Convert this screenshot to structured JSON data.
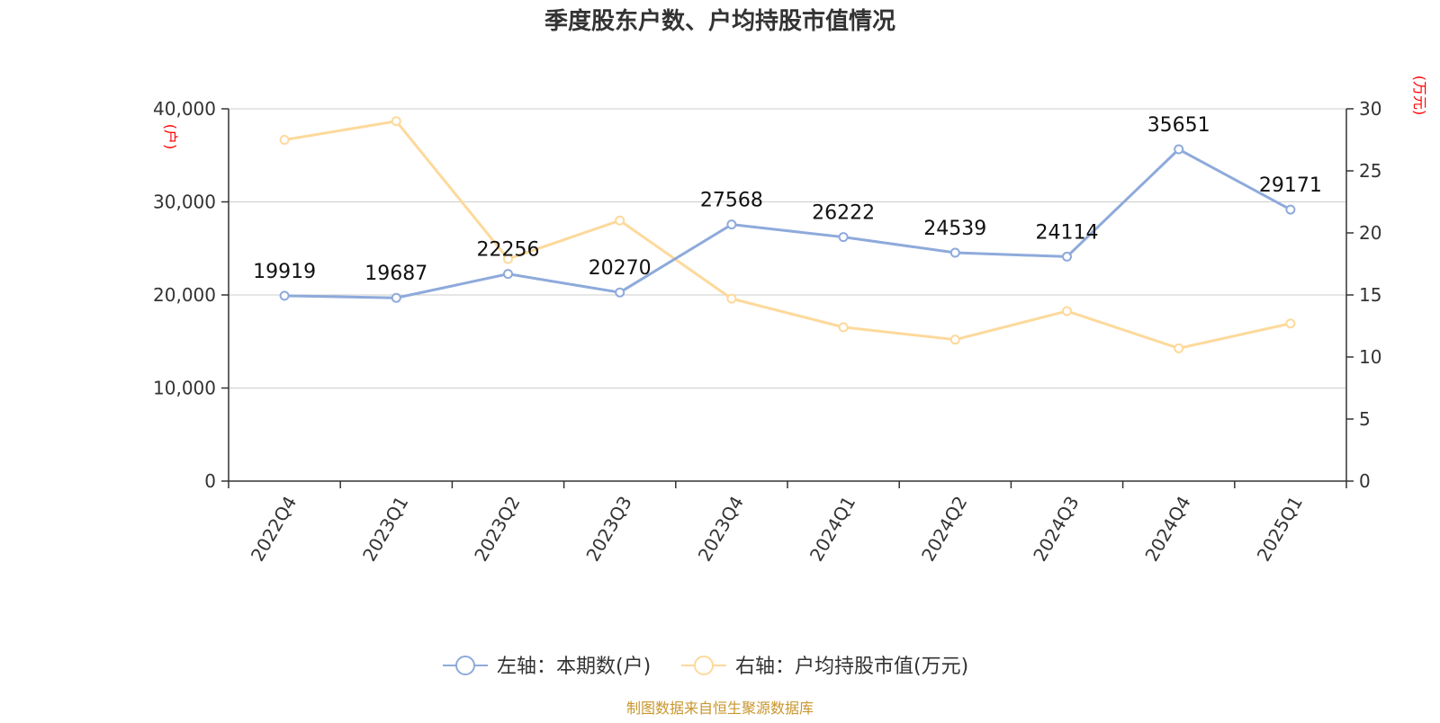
{
  "chart_data": {
    "type": "line",
    "title": "季度股东户数、户均持股市值情况",
    "categories": [
      "2022Q4",
      "2023Q1",
      "2023Q2",
      "2023Q3",
      "2023Q4",
      "2024Q1",
      "2024Q2",
      "2024Q3",
      "2024Q4",
      "2025Q1"
    ],
    "y_left": {
      "unit": "(户)",
      "range": [
        0,
        40000
      ],
      "ticks": [
        0,
        10000,
        20000,
        30000,
        40000
      ],
      "tick_labels": [
        "0",
        "10,000",
        "20,000",
        "30,000",
        "40,000"
      ]
    },
    "y_right": {
      "unit": "(万元)",
      "range": [
        0,
        30
      ],
      "ticks": [
        0,
        5,
        10,
        15,
        20,
        25,
        30
      ],
      "tick_labels": [
        "0",
        "5",
        "10",
        "15",
        "20",
        "25",
        "30"
      ]
    },
    "series": [
      {
        "name": "左轴：本期数(户)",
        "axis": "left",
        "color": "#8eaadb",
        "values": [
          19919,
          19687,
          22256,
          20270,
          27568,
          26222,
          24539,
          24114,
          35651,
          29171
        ],
        "data_labels": [
          "19919",
          "19687",
          "22256",
          "20270",
          "27568",
          "26222",
          "24539",
          "24114",
          "35651",
          "29171"
        ]
      },
      {
        "name": "右轴：户均持股市值(万元)",
        "axis": "right",
        "color": "#fdd99b",
        "values": [
          27.5,
          29.0,
          17.9,
          21.0,
          14.7,
          12.4,
          11.4,
          13.7,
          10.7,
          12.7
        ]
      }
    ],
    "grid": true,
    "legend_position": "bottom-center"
  },
  "footer": {
    "source": "制图数据来自恒生聚源数据库"
  },
  "colors": {
    "title": "#333333",
    "axis": "#333333",
    "grid": "#cccccc",
    "unit": "#ff0000",
    "source": "#c8962d"
  }
}
